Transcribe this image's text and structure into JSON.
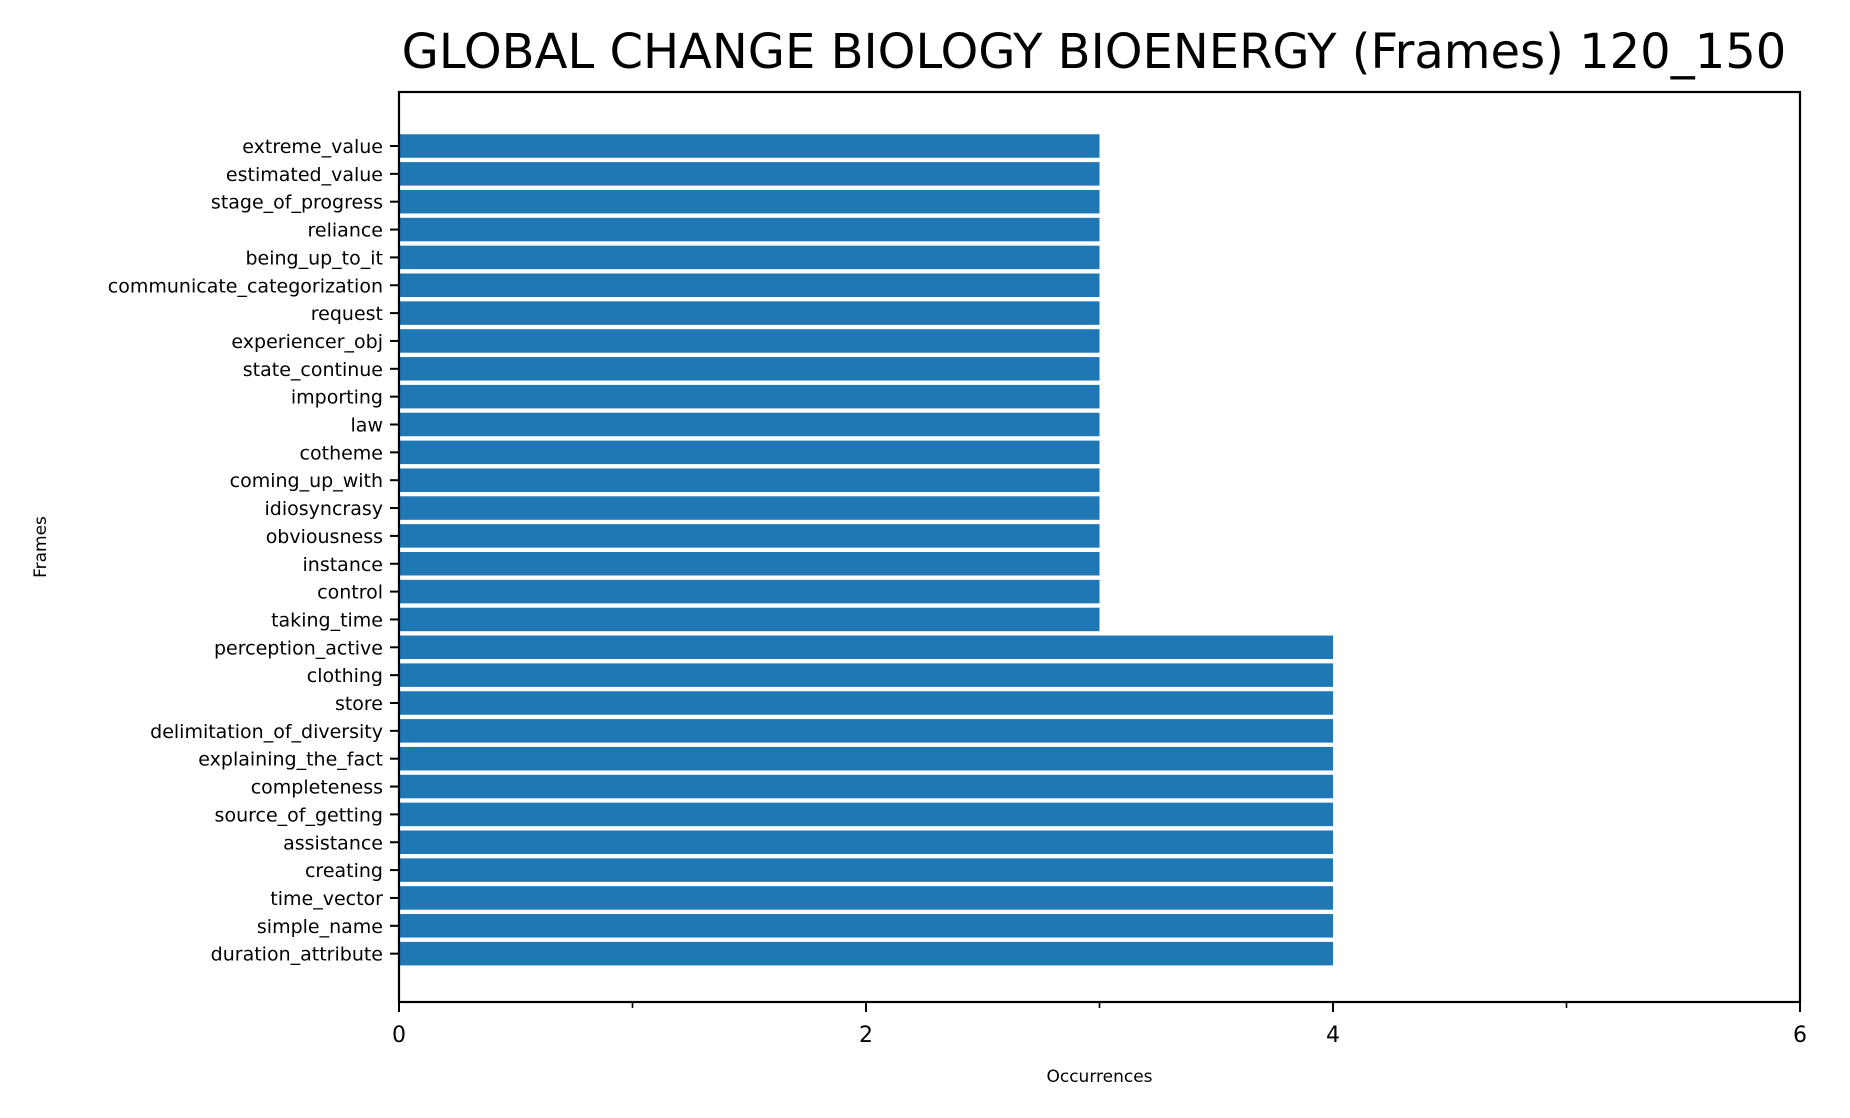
{
  "chart_data": {
    "type": "bar",
    "orientation": "horizontal",
    "title": "GLOBAL CHANGE BIOLOGY BIOENERGY (Frames) 120_150",
    "xlabel": "Occurrences",
    "ylabel": "Frames",
    "xlim": [
      0,
      6
    ],
    "xticks": [
      0,
      2,
      4,
      6
    ],
    "xtick_labels": [
      "0",
      "2",
      "4",
      "6"
    ],
    "grid": false,
    "bar_color": "#1f77b4",
    "categories": [
      "extreme_value",
      "estimated_value",
      "stage_of_progress",
      "reliance",
      "being_up_to_it",
      "communicate_categorization",
      "request",
      "experiencer_obj",
      "state_continue",
      "importing",
      "law",
      "cotheme",
      "coming_up_with",
      "idiosyncrasy",
      "obviousness",
      "instance",
      "control",
      "taking_time",
      "perception_active",
      "clothing",
      "store",
      "delimitation_of_diversity",
      "explaining_the_fact",
      "completeness",
      "source_of_getting",
      "assistance",
      "creating",
      "time_vector",
      "simple_name",
      "duration_attribute"
    ],
    "values": [
      3,
      3,
      3,
      3,
      3,
      3,
      3,
      3,
      3,
      3,
      3,
      3,
      3,
      3,
      3,
      3,
      3,
      3,
      4,
      4,
      4,
      4,
      4,
      4,
      4,
      4,
      4,
      4,
      4,
      4
    ]
  }
}
